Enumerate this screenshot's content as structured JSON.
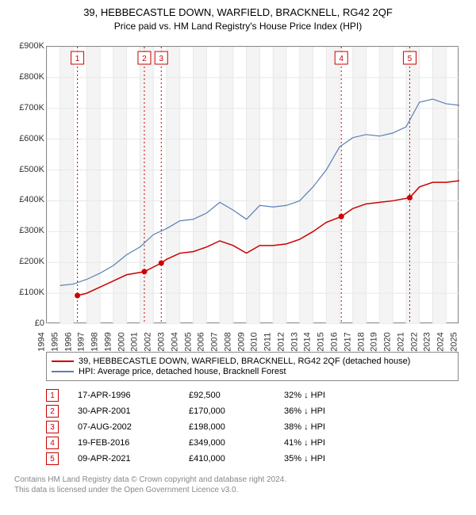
{
  "title": "39, HEBBECASTLE DOWN, WARFIELD, BRACKNELL, RG42 2QF",
  "subtitle": "Price paid vs. HM Land Registry's House Price Index (HPI)",
  "chart": {
    "type": "line",
    "xlim": [
      1994,
      2025
    ],
    "ylim": [
      0,
      900000
    ],
    "ytick_step": 100000,
    "yticks": [
      "£0",
      "£100K",
      "£200K",
      "£300K",
      "£400K",
      "£500K",
      "£600K",
      "£700K",
      "£800K",
      "£900K"
    ],
    "xticks": [
      1994,
      1995,
      1996,
      1997,
      1998,
      1999,
      2000,
      2001,
      2002,
      2003,
      2004,
      2005,
      2006,
      2007,
      2008,
      2009,
      2010,
      2011,
      2012,
      2013,
      2014,
      2015,
      2016,
      2017,
      2018,
      2019,
      2020,
      2021,
      2022,
      2023,
      2024,
      2025
    ],
    "grid_color": "#e8e8e8",
    "alt_band_color": "#f4f4f4",
    "background_color": "#ffffff",
    "series": [
      {
        "name": "property",
        "label": "39, HEBBECASTLE DOWN, WARFIELD, BRACKNELL, RG42 2QF (detached house)",
        "color": "#cc0000",
        "width": 1.5,
        "points": [
          [
            1996.3,
            92500
          ],
          [
            1997,
            100000
          ],
          [
            1998,
            120000
          ],
          [
            1999,
            140000
          ],
          [
            2000,
            160000
          ],
          [
            2001.33,
            170000
          ],
          [
            2002.6,
            198000
          ],
          [
            2003,
            210000
          ],
          [
            2004,
            230000
          ],
          [
            2005,
            235000
          ],
          [
            2006,
            250000
          ],
          [
            2007,
            270000
          ],
          [
            2008,
            255000
          ],
          [
            2009,
            230000
          ],
          [
            2010,
            255000
          ],
          [
            2011,
            255000
          ],
          [
            2012,
            260000
          ],
          [
            2013,
            275000
          ],
          [
            2014,
            300000
          ],
          [
            2015,
            330000
          ],
          [
            2016.13,
            349000
          ],
          [
            2017,
            375000
          ],
          [
            2018,
            390000
          ],
          [
            2019,
            395000
          ],
          [
            2020,
            400000
          ],
          [
            2021.27,
            410000
          ],
          [
            2022,
            445000
          ],
          [
            2023,
            460000
          ],
          [
            2024,
            460000
          ],
          [
            2025,
            465000
          ]
        ]
      },
      {
        "name": "hpi",
        "label": "HPI: Average price, detached house, Bracknell Forest",
        "color": "#5b7fb5",
        "width": 1.2,
        "points": [
          [
            1995,
            125000
          ],
          [
            1996,
            130000
          ],
          [
            1997,
            145000
          ],
          [
            1998,
            165000
          ],
          [
            1999,
            190000
          ],
          [
            2000,
            225000
          ],
          [
            2001,
            250000
          ],
          [
            2002,
            290000
          ],
          [
            2003,
            310000
          ],
          [
            2004,
            335000
          ],
          [
            2005,
            340000
          ],
          [
            2006,
            360000
          ],
          [
            2007,
            395000
          ],
          [
            2008,
            370000
          ],
          [
            2009,
            340000
          ],
          [
            2010,
            385000
          ],
          [
            2011,
            380000
          ],
          [
            2012,
            385000
          ],
          [
            2013,
            400000
          ],
          [
            2014,
            445000
          ],
          [
            2015,
            500000
          ],
          [
            2016,
            575000
          ],
          [
            2017,
            605000
          ],
          [
            2018,
            615000
          ],
          [
            2019,
            610000
          ],
          [
            2020,
            620000
          ],
          [
            2021,
            640000
          ],
          [
            2022,
            720000
          ],
          [
            2023,
            730000
          ],
          [
            2024,
            715000
          ],
          [
            2025,
            710000
          ]
        ]
      }
    ],
    "markers": [
      {
        "n": 1,
        "x": 1996.3,
        "y": 92500
      },
      {
        "n": 2,
        "x": 2001.33,
        "y": 170000
      },
      {
        "n": 3,
        "x": 2002.6,
        "y": 198000
      },
      {
        "n": 4,
        "x": 2016.13,
        "y": 349000
      },
      {
        "n": 5,
        "x": 2021.27,
        "y": 410000
      }
    ]
  },
  "legend": [
    {
      "color": "#cc0000",
      "label": "39, HEBBECASTLE DOWN, WARFIELD, BRACKNELL, RG42 2QF (detached house)"
    },
    {
      "color": "#5b7fb5",
      "label": "HPI: Average price, detached house, Bracknell Forest"
    }
  ],
  "transactions": [
    {
      "n": "1",
      "date": "17-APR-1996",
      "price": "£92,500",
      "pct": "32% ↓ HPI"
    },
    {
      "n": "2",
      "date": "30-APR-2001",
      "price": "£170,000",
      "pct": "36% ↓ HPI"
    },
    {
      "n": "3",
      "date": "07-AUG-2002",
      "price": "£198,000",
      "pct": "38% ↓ HPI"
    },
    {
      "n": "4",
      "date": "19-FEB-2016",
      "price": "£349,000",
      "pct": "41% ↓ HPI"
    },
    {
      "n": "5",
      "date": "09-APR-2021",
      "price": "£410,000",
      "pct": "35% ↓ HPI"
    }
  ],
  "footer": {
    "line1": "Contains HM Land Registry data © Crown copyright and database right 2024.",
    "line2": "This data is licensed under the Open Government Licence v3.0."
  }
}
